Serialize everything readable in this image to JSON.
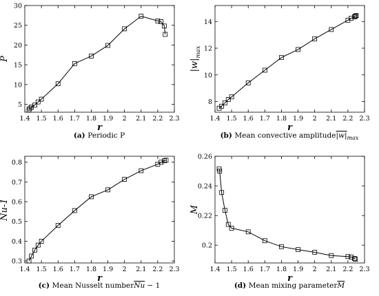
{
  "chart_data": [
    {
      "type": "line",
      "panel_label": "(a)",
      "caption": "Periodic P",
      "xlabel": "r",
      "ylabel": "P",
      "xlim": [
        1.4,
        2.3
      ],
      "ylim": [
        3,
        30
      ],
      "xticks": [
        1.4,
        1.5,
        1.6,
        1.7,
        1.8,
        1.9,
        2.0,
        2.1,
        2.2,
        2.3
      ],
      "yticks": [
        5,
        10,
        15,
        20,
        25,
        30
      ],
      "xtick_labels": [
        "1.4",
        "1.5",
        "1.6",
        "1.7",
        "1.8",
        "1.9",
        "2",
        "2.1",
        "2.2",
        "2.3"
      ],
      "ytick_labels": [
        "5",
        "10",
        "15",
        "20",
        "25",
        "30"
      ],
      "grid": false,
      "marker": "square",
      "x": [
        1.425,
        1.43,
        1.44,
        1.46,
        1.48,
        1.5,
        1.6,
        1.7,
        1.8,
        1.9,
        2.0,
        2.1,
        2.2,
        2.22,
        2.24,
        2.245
      ],
      "y": [
        3.6,
        4.0,
        4.3,
        4.8,
        5.6,
        6.3,
        10.2,
        15.3,
        17.2,
        19.9,
        24.1,
        27.3,
        26.1,
        25.9,
        24.8,
        22.7
      ]
    },
    {
      "type": "line",
      "panel_label": "(b)",
      "caption": "Mean convective amplitude",
      "caption_math": "|w|",
      "caption_math_sub": "max",
      "xlabel": "r",
      "ylabel": "|w|",
      "ylabel_sub": "max",
      "xlim": [
        1.4,
        2.3
      ],
      "ylim": [
        7.2,
        15.2
      ],
      "xticks": [
        1.4,
        1.5,
        1.6,
        1.7,
        1.8,
        1.9,
        2.0,
        2.1,
        2.2,
        2.3
      ],
      "yticks": [
        8,
        10,
        12,
        14
      ],
      "xtick_labels": [
        "1.4",
        "1.5",
        "1.6",
        "1.7",
        "1.8",
        "1.9",
        "2",
        "2.1",
        "2.2",
        "2.3"
      ],
      "ytick_labels": [
        "8",
        "10",
        "12",
        "14"
      ],
      "grid": false,
      "marker": "square",
      "x": [
        1.425,
        1.44,
        1.46,
        1.48,
        1.5,
        1.6,
        1.7,
        1.8,
        1.9,
        2.0,
        2.1,
        2.2,
        2.22,
        2.24,
        2.245,
        2.25
      ],
      "y": [
        7.5,
        7.65,
        7.9,
        8.15,
        8.35,
        9.4,
        10.35,
        11.3,
        11.9,
        12.7,
        13.4,
        14.1,
        14.25,
        14.35,
        14.4,
        14.45
      ]
    },
    {
      "type": "line",
      "panel_label": "(c)",
      "caption": "Mean Nusselt number",
      "caption_math": "Nu",
      "caption_math_tail": " − 1",
      "xlabel": "r",
      "ylabel": "Nu-1",
      "xlim": [
        1.4,
        2.3
      ],
      "ylim": [
        0.29,
        0.83
      ],
      "xticks": [
        1.4,
        1.5,
        1.6,
        1.7,
        1.8,
        1.9,
        2.0,
        2.1,
        2.2,
        2.3
      ],
      "yticks": [
        0.3,
        0.4,
        0.5,
        0.6,
        0.7,
        0.8
      ],
      "xtick_labels": [
        "1.4",
        "1.5",
        "1.6",
        "1.7",
        "1.8",
        "1.9",
        "2",
        "2.1",
        "2.2",
        "2.3"
      ],
      "ytick_labels": [
        "0.3",
        "0.4",
        "0.5",
        "0.6",
        "0.7",
        "0.8"
      ],
      "grid": false,
      "marker": "square",
      "x": [
        1.425,
        1.44,
        1.46,
        1.48,
        1.5,
        1.6,
        1.7,
        1.8,
        1.9,
        2.0,
        2.1,
        2.2,
        2.22,
        2.24,
        2.25
      ],
      "y": [
        0.3,
        0.325,
        0.355,
        0.38,
        0.4,
        0.48,
        0.555,
        0.625,
        0.66,
        0.713,
        0.757,
        0.79,
        0.8,
        0.807,
        0.81
      ]
    },
    {
      "type": "line",
      "panel_label": "(d)",
      "caption": "Mean mixing parameter",
      "caption_math": "M",
      "xlabel": "r",
      "ylabel": "M",
      "xlim": [
        1.4,
        2.3
      ],
      "ylim": [
        0.188,
        0.26
      ],
      "xticks": [
        1.4,
        1.5,
        1.6,
        1.7,
        1.8,
        1.9,
        2.0,
        2.1,
        2.2,
        2.3
      ],
      "yticks": [
        0.2,
        0.22,
        0.24,
        0.26
      ],
      "xtick_labels": [
        "1.4",
        "1.5",
        "1.6",
        "1.7",
        "1.8",
        "1.9",
        "2",
        "2.1",
        "2.2",
        "2.3"
      ],
      "ytick_labels": [
        "0.2",
        "0.22",
        "0.24",
        "0.26"
      ],
      "grid": false,
      "marker": "square",
      "x": [
        1.425,
        1.428,
        1.44,
        1.46,
        1.48,
        1.5,
        1.6,
        1.7,
        1.8,
        1.9,
        2.0,
        2.1,
        2.2,
        2.22,
        2.24,
        2.245
      ],
      "y": [
        0.2515,
        0.25,
        0.2355,
        0.2235,
        0.214,
        0.2115,
        0.209,
        0.203,
        0.199,
        0.197,
        0.1952,
        0.193,
        0.1923,
        0.192,
        0.191,
        0.1905
      ]
    }
  ]
}
